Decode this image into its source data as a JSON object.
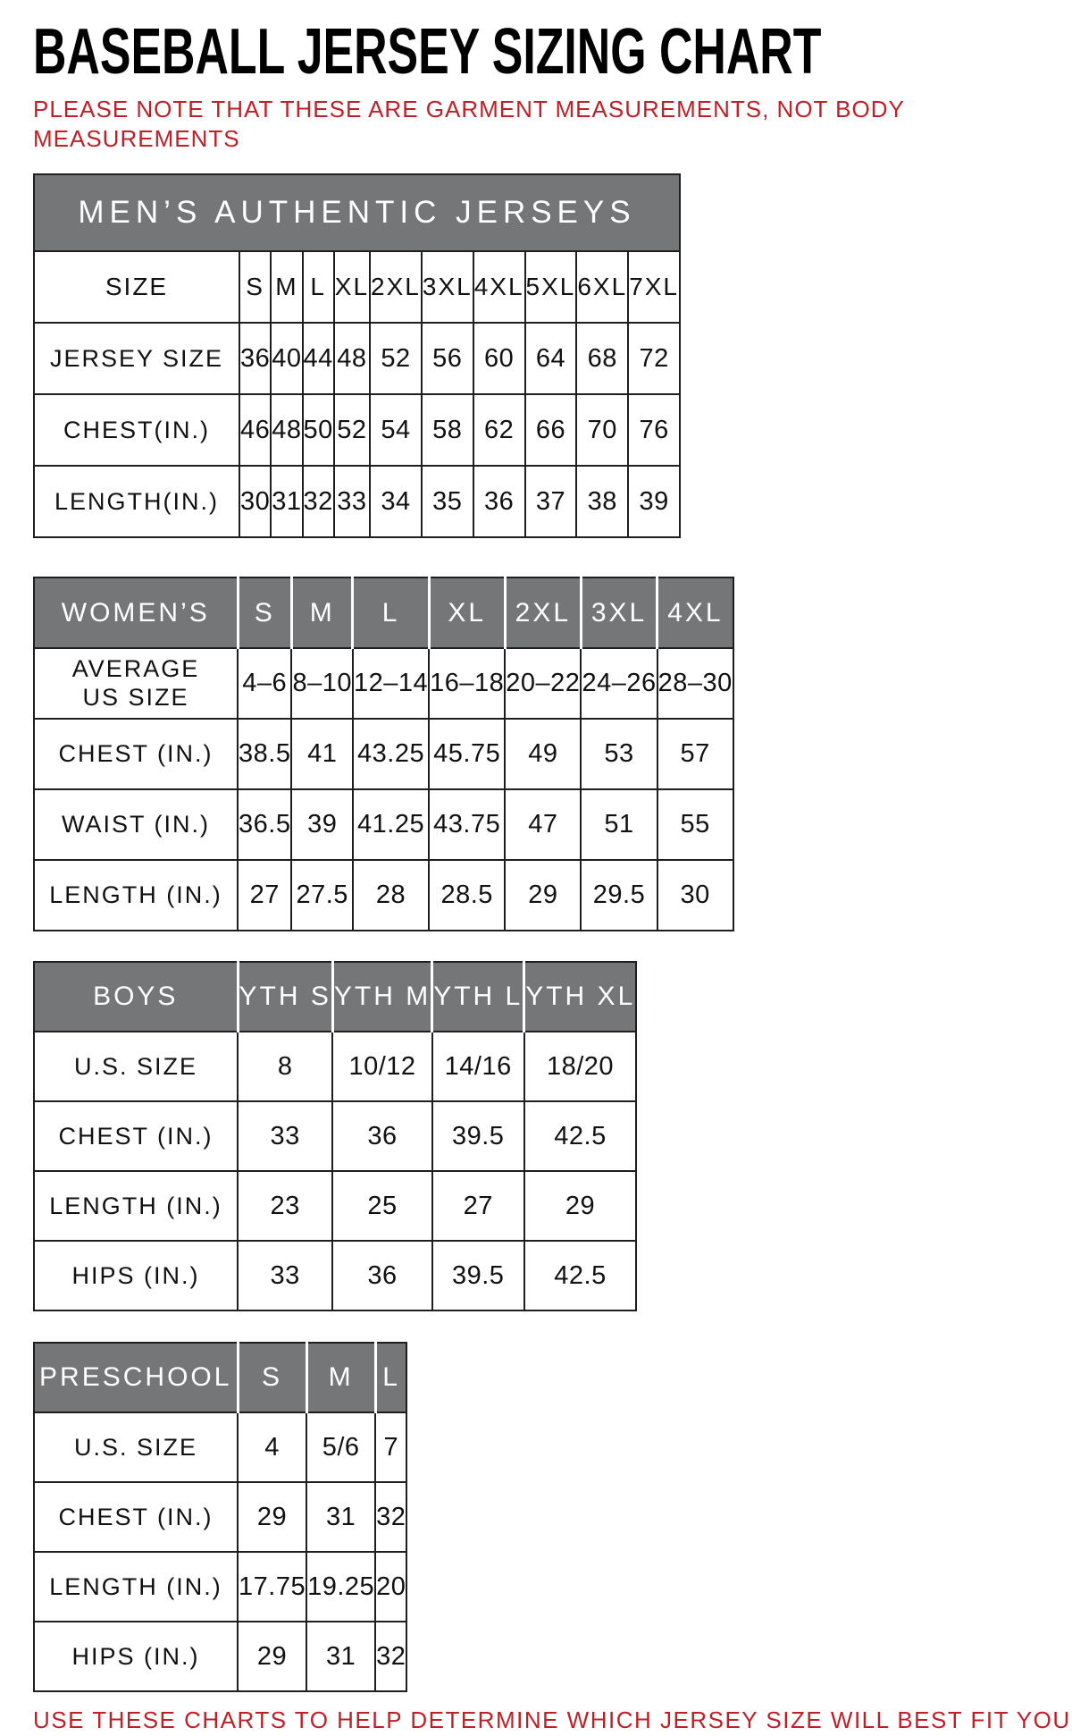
{
  "page": {
    "title": "BASEBALL JERSEY SIZING CHART",
    "note_line1": "PLEASE NOTE THAT THESE ARE GARMENT MEASUREMENTS, NOT BODY",
    "note_line2": "MEASUREMENTS",
    "footer": "USE THESE CHARTS TO HELP DETERMINE WHICH JERSEY SIZE WILL BEST FIT YOU.",
    "colors": {
      "accent_red": "#c01f28",
      "header_gray": "#757678",
      "border_black": "#1e1e1e",
      "background": "#ffffff"
    }
  },
  "tables": [
    {
      "id": "mens",
      "banner": "MEN’S AUTHENTIC JERSEYS",
      "header_style": "plain",
      "header_cells": [
        "SIZE",
        "S",
        "M",
        "L",
        "XL",
        "2XL",
        "3XL",
        "4XL",
        "5XL",
        "6XL",
        "7XL"
      ],
      "rows": [
        {
          "label": "JERSEY SIZE",
          "values": [
            "36",
            "40",
            "44",
            "48",
            "52",
            "56",
            "60",
            "64",
            "68",
            "72"
          ]
        },
        {
          "label": "CHEST(IN.)",
          "values": [
            "46",
            "48",
            "50",
            "52",
            "54",
            "58",
            "62",
            "66",
            "70",
            "76"
          ]
        },
        {
          "label": "LENGTH(IN.)",
          "values": [
            "30",
            "31",
            "32",
            "33",
            "34",
            "35",
            "36",
            "37",
            "38",
            "39"
          ]
        }
      ]
    },
    {
      "id": "womens",
      "banner": null,
      "header_style": "gray",
      "header_cells": [
        "WOMEN’S",
        "S",
        "M",
        "L",
        "XL",
        "2XL",
        "3XL",
        "4XL"
      ],
      "rows": [
        {
          "label": "AVERAGE\nUS SIZE",
          "values": [
            "4–6",
            "8–10",
            "12–14",
            "16–18",
            "20–22",
            "24–26",
            "28–30"
          ]
        },
        {
          "label": "CHEST (IN.)",
          "values": [
            "38.5",
            "41",
            "43.25",
            "45.75",
            "49",
            "53",
            "57"
          ]
        },
        {
          "label": "WAIST (IN.)",
          "values": [
            "36.5",
            "39",
            "41.25",
            "43.75",
            "47",
            "51",
            "55"
          ]
        },
        {
          "label": "LENGTH (IN.)",
          "values": [
            "27",
            "27.5",
            "28",
            "28.5",
            "29",
            "29.5",
            "30"
          ]
        }
      ]
    },
    {
      "id": "boys",
      "banner": null,
      "header_style": "gray",
      "header_cells": [
        "BOYS",
        "YTH S",
        "YTH M",
        "YTH L",
        "YTH XL"
      ],
      "rows": [
        {
          "label": "U.S. SIZE",
          "values": [
            "8",
            "10/12",
            "14/16",
            "18/20"
          ]
        },
        {
          "label": "CHEST (IN.)",
          "values": [
            "33",
            "36",
            "39.5",
            "42.5"
          ]
        },
        {
          "label": "LENGTH (IN.)",
          "values": [
            "23",
            "25",
            "27",
            "29"
          ]
        },
        {
          "label": "HIPS (IN.)",
          "values": [
            "33",
            "36",
            "39.5",
            "42.5"
          ]
        }
      ]
    },
    {
      "id": "preschool",
      "banner": null,
      "header_style": "gray",
      "header_cells": [
        "PRESCHOOL",
        "S",
        "M",
        "L"
      ],
      "rows": [
        {
          "label": "U.S. SIZE",
          "values": [
            "4",
            "5/6",
            "7"
          ]
        },
        {
          "label": "CHEST (IN.)",
          "values": [
            "29",
            "31",
            "32"
          ]
        },
        {
          "label": "LENGTH (IN.)",
          "values": [
            "17.75",
            "19.25",
            "20"
          ]
        },
        {
          "label": "HIPS (IN.)",
          "values": [
            "29",
            "31",
            "32"
          ]
        }
      ]
    }
  ]
}
